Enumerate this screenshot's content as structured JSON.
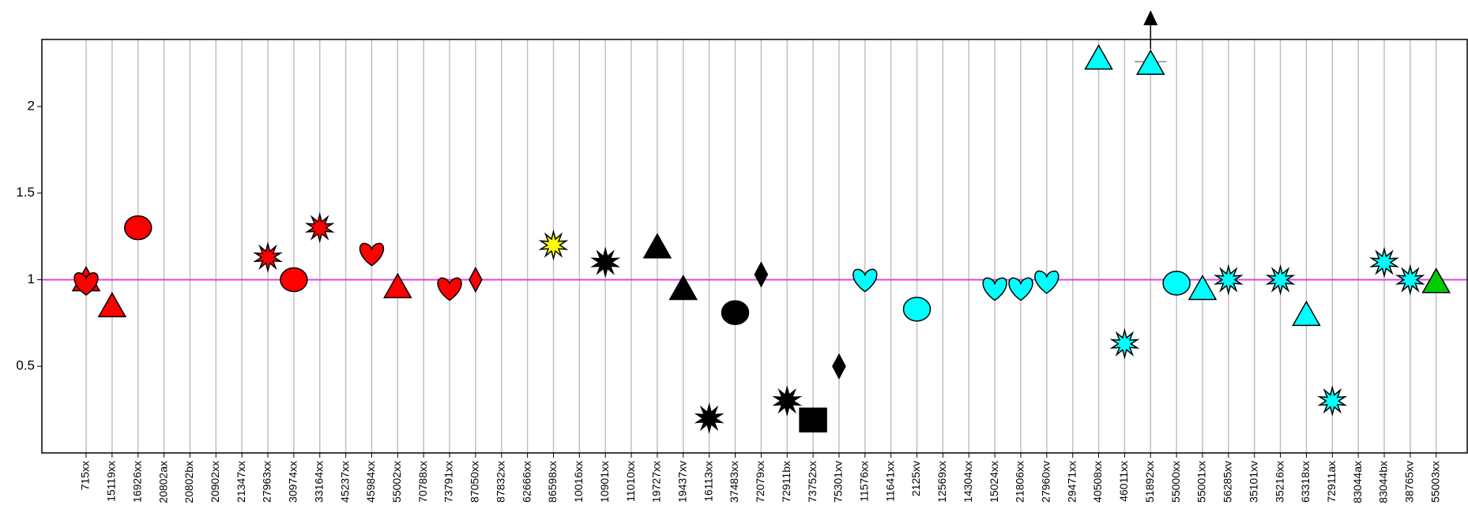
{
  "chart_data": {
    "type": "scatter",
    "title": "",
    "xlabel": "",
    "ylabel": "",
    "ylim": [
      0,
      2.4
    ],
    "yticks": [
      0.5,
      1,
      1.5,
      2
    ],
    "ytick_labels": [
      "0.5",
      "1",
      "1.5",
      "2"
    ],
    "grid": "vertical",
    "reference_line": {
      "y": 1,
      "color": "#e040e0"
    },
    "categories": [
      "715xx",
      "15119xx",
      "16926xx",
      "20802ax",
      "20802bx",
      "20902xx",
      "21347xx",
      "27963xx",
      "30974xx",
      "33164xx",
      "45237xx",
      "45984xx",
      "55002xx",
      "70788xx",
      "73791xx",
      "87050xx",
      "87832xx",
      "62666xx",
      "86598xx",
      "10016xx",
      "10901xx",
      "11010xx",
      "19727xx",
      "19437xv",
      "16113xx",
      "37483xx",
      "72079xx",
      "72911bx",
      "73752xx",
      "75301xv",
      "11576xx",
      "11641xx",
      "2125xv",
      "12569xx",
      "14304xx",
      "15024xx",
      "21806xx",
      "27960xv",
      "29471xx",
      "40508xx",
      "46011xx",
      "51892xx",
      "55000xx",
      "55001xx",
      "56285xv",
      "35101xv",
      "35216xx",
      "63318xx",
      "72911ax",
      "83044ax",
      "83044bx",
      "38765xv",
      "55003xx"
    ],
    "points": [
      {
        "category": "715xx",
        "y": 1.0,
        "shape": "triangle",
        "color": "#ff0000"
      },
      {
        "category": "715xx",
        "y": 0.98,
        "shape": "heart",
        "color": "#ff0000"
      },
      {
        "category": "15119xx",
        "y": 0.85,
        "shape": "triangle",
        "color": "#ff0000"
      },
      {
        "category": "16926xx",
        "y": 1.3,
        "shape": "circle",
        "color": "#ff0000"
      },
      {
        "category": "27963xx",
        "y": 1.13,
        "shape": "star",
        "color": "#ff0000"
      },
      {
        "category": "30974xx",
        "y": 1.0,
        "shape": "circle",
        "color": "#ff0000"
      },
      {
        "category": "33164xx",
        "y": 1.3,
        "shape": "star",
        "color": "#ff0000"
      },
      {
        "category": "45984xx",
        "y": 1.15,
        "shape": "heart",
        "color": "#ff0000"
      },
      {
        "category": "55002xx",
        "y": 0.96,
        "shape": "triangle",
        "color": "#ff0000"
      },
      {
        "category": "73791xx",
        "y": 0.95,
        "shape": "heart",
        "color": "#ff0000"
      },
      {
        "category": "87050xx",
        "y": 1.0,
        "shape": "diamond",
        "color": "#ff0000"
      },
      {
        "category": "86598xx",
        "y": 1.2,
        "shape": "star",
        "color": "#ffff00"
      },
      {
        "category": "10901xx",
        "y": 1.1,
        "shape": "star",
        "color": "#000000"
      },
      {
        "category": "19727xx",
        "y": 1.19,
        "shape": "triangle",
        "color": "#000000"
      },
      {
        "category": "19437xv",
        "y": 0.95,
        "shape": "triangle",
        "color": "#000000"
      },
      {
        "category": "16113xx",
        "y": 0.2,
        "shape": "star",
        "color": "#000000"
      },
      {
        "category": "37483xx",
        "y": 0.81,
        "shape": "circle",
        "color": "#000000"
      },
      {
        "category": "72079xx",
        "y": 1.03,
        "shape": "diamond",
        "color": "#000000"
      },
      {
        "category": "72911bx",
        "y": 0.3,
        "shape": "star",
        "color": "#000000"
      },
      {
        "category": "73752xx",
        "y": 0.19,
        "shape": "square",
        "color": "#000000"
      },
      {
        "category": "75301xv",
        "y": 0.5,
        "shape": "diamond",
        "color": "#000000"
      },
      {
        "category": "11576xx",
        "y": 1.0,
        "shape": "heart",
        "color": "#00ffff"
      },
      {
        "category": "2125xv",
        "y": 0.83,
        "shape": "circle",
        "color": "#00ffff"
      },
      {
        "category": "15024xx",
        "y": 0.95,
        "shape": "heart",
        "color": "#00ffff"
      },
      {
        "category": "21806xx",
        "y": 0.95,
        "shape": "heart",
        "color": "#00ffff"
      },
      {
        "category": "27960xv",
        "y": 0.99,
        "shape": "heart",
        "color": "#00ffff"
      },
      {
        "category": "40508xx",
        "y": 2.28,
        "shape": "triangle",
        "color": "#00ffff"
      },
      {
        "category": "46011xx",
        "y": 0.63,
        "shape": "star",
        "color": "#00ffff"
      },
      {
        "category": "51892xx",
        "y": 2.25,
        "shape": "triangle",
        "color": "#00ffff",
        "error_bar": true,
        "arrow_up": true
      },
      {
        "category": "55000xx",
        "y": 0.98,
        "shape": "circle",
        "color": "#00ffff"
      },
      {
        "category": "55001xx",
        "y": 0.95,
        "shape": "triangle",
        "color": "#00ffff"
      },
      {
        "category": "56285xv",
        "y": 1.0,
        "shape": "star",
        "color": "#00ffff"
      },
      {
        "category": "35216xx",
        "y": 1.0,
        "shape": "star",
        "color": "#00ffff"
      },
      {
        "category": "63318xx",
        "y": 0.8,
        "shape": "triangle",
        "color": "#00ffff"
      },
      {
        "category": "72911ax",
        "y": 0.3,
        "shape": "star",
        "color": "#00ffff"
      },
      {
        "category": "83044bx",
        "y": 1.1,
        "shape": "star",
        "color": "#00ffff"
      },
      {
        "category": "38765xv",
        "y": 1.0,
        "shape": "star",
        "color": "#00ffff"
      },
      {
        "category": "55003xx",
        "y": 0.99,
        "shape": "triangle",
        "color": "#00cc00"
      }
    ]
  }
}
